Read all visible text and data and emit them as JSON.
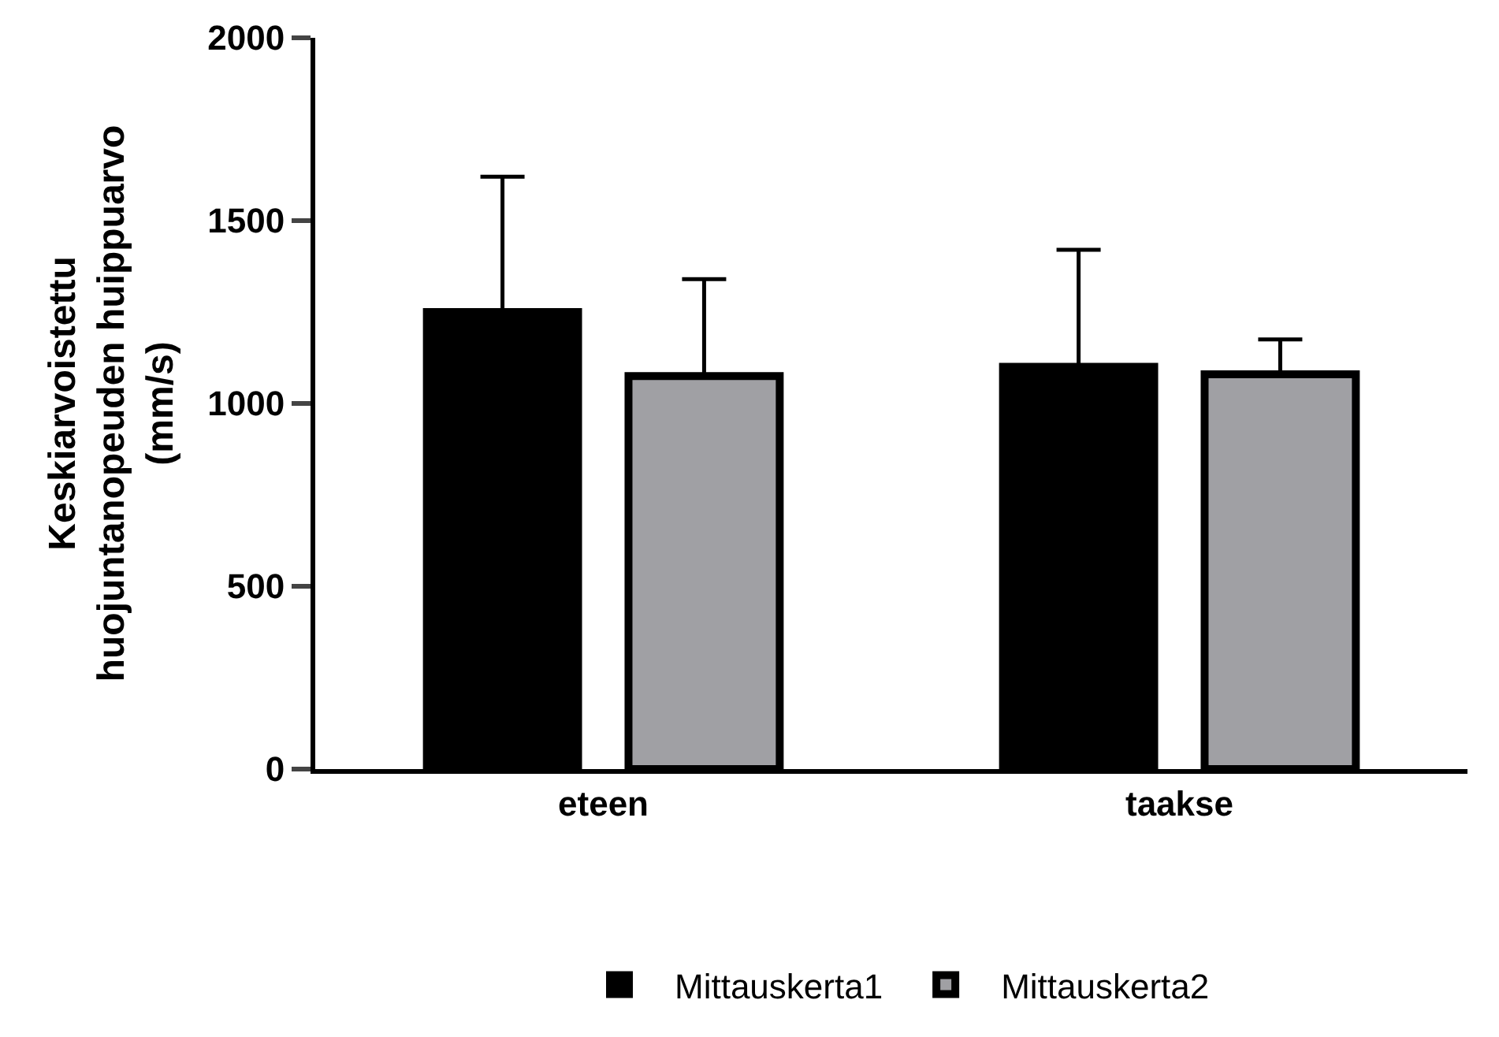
{
  "chart_data": {
    "type": "bar",
    "ylabel": "Keskiarvoistettu\nhuojuntanopeuden huippuarvo\n(mm/s)",
    "categories": [
      "eteen",
      "taakse"
    ],
    "series": [
      {
        "name": "Mittauskerta1",
        "color": "#000000",
        "values": [
          1250,
          1100
        ],
        "errors": [
          [
            1250,
            1620
          ],
          [
            1100,
            1420
          ]
        ]
      },
      {
        "name": "Mittauskerta2",
        "color": "#a0a0a4",
        "values": [
          1075,
          1080
        ],
        "errors": [
          [
            1075,
            1340
          ],
          [
            1080,
            1175
          ]
        ]
      }
    ],
    "ylim": [
      0,
      2000
    ],
    "yticks": [
      0,
      500,
      1000,
      1500,
      2000
    ],
    "grid": false,
    "legend": "bottom"
  }
}
